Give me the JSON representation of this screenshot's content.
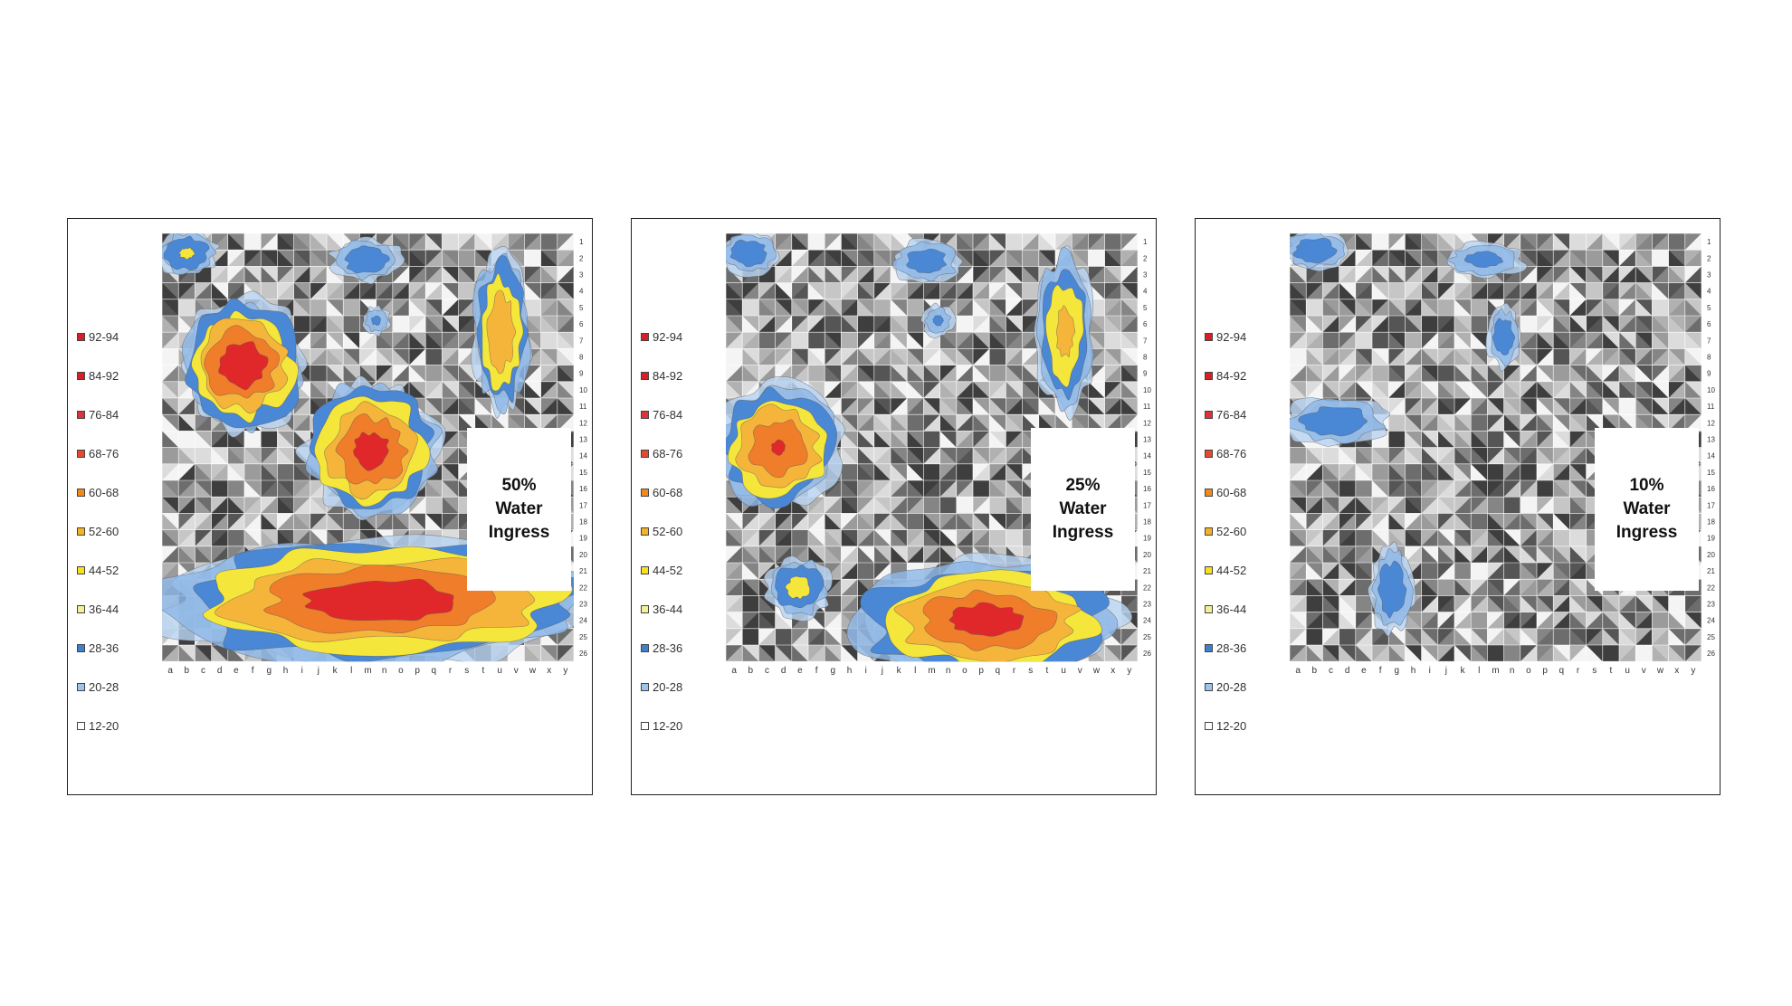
{
  "legend": [
    "92-94",
    "84-92",
    "76-84",
    "68-76",
    "60-68",
    "52-60",
    "44-52",
    "36-44",
    "28-36",
    "20-28",
    "12-20"
  ],
  "colors": {
    "bin_colors": [
      "#d91f26",
      "#d91f26",
      "#e0303a",
      "#e64a2e",
      "#f08a1e",
      "#f5b324",
      "#fadf1e",
      "#f6ef9a",
      "#3f7fd0",
      "#9ec3ec",
      "#ffffff"
    ],
    "contour_fill": [
      "#b9d4f1",
      "#8fb8e8",
      "#4a87d4",
      "#f4e63b",
      "#f5b53a",
      "#ef7d2a",
      "#e0282b"
    ],
    "grid_shades": [
      "#3e3e3e",
      "#555555",
      "#6d6d6d",
      "#858585",
      "#9b9b9b",
      "#b1b1b1",
      "#c6c6c6",
      "#dcdcdc",
      "#f4f4f4"
    ],
    "border": "#222222"
  },
  "chart_data": [
    {
      "type": "heatmap",
      "annotation": [
        "50%",
        "Water",
        "Ingress"
      ],
      "xlabels": [
        "a",
        "b",
        "c",
        "d",
        "e",
        "f",
        "g",
        "h",
        "i",
        "j",
        "k",
        "l",
        "m",
        "n",
        "o",
        "p",
        "q",
        "r",
        "s",
        "t",
        "u",
        "v",
        "w",
        "x",
        "y"
      ],
      "ylabels": [
        "1",
        "2",
        "3",
        "4",
        "5",
        "6",
        "7",
        "8",
        "9",
        "10",
        "11",
        "12",
        "13",
        "14",
        "15",
        "16",
        "17",
        "18",
        "19",
        "20",
        "21",
        "22",
        "23",
        "24",
        "25",
        "26"
      ],
      "hotspots": [
        {
          "x": 1.5,
          "y": 1.2,
          "rx": 1.6,
          "ry": 1.2,
          "peak": 0.42
        },
        {
          "x": 12.4,
          "y": 1.6,
          "rx": 1.9,
          "ry": 1.2,
          "peak": 0.34
        },
        {
          "x": 13.0,
          "y": 5.3,
          "rx": 0.8,
          "ry": 0.8,
          "peak": 0.26
        },
        {
          "x": 20.6,
          "y": 6.0,
          "rx": 1.5,
          "ry": 4.2,
          "peak": 0.68
        },
        {
          "x": 4.9,
          "y": 8.0,
          "rx": 3.3,
          "ry": 3.4,
          "peak": 0.95
        },
        {
          "x": 12.7,
          "y": 13.2,
          "rx": 3.5,
          "ry": 3.5,
          "peak": 0.9
        },
        {
          "x": 13.5,
          "y": 22.3,
          "rx": 12.0,
          "ry": 3.3,
          "peak": 0.93
        }
      ]
    },
    {
      "type": "heatmap",
      "annotation": [
        "25%",
        "Water",
        "Ingress"
      ],
      "xlabels": [
        "a",
        "b",
        "c",
        "d",
        "e",
        "f",
        "g",
        "h",
        "i",
        "j",
        "k",
        "l",
        "m",
        "n",
        "o",
        "p",
        "q",
        "r",
        "s",
        "t",
        "u",
        "v",
        "w",
        "x",
        "y"
      ],
      "ylabels": [
        "1",
        "2",
        "3",
        "4",
        "5",
        "6",
        "7",
        "8",
        "9",
        "10",
        "11",
        "12",
        "13",
        "14",
        "15",
        "16",
        "17",
        "18",
        "19",
        "20",
        "21",
        "22",
        "23",
        "24",
        "25",
        "26"
      ],
      "hotspots": [
        {
          "x": 1.4,
          "y": 1.2,
          "rx": 1.6,
          "ry": 1.2,
          "peak": 0.34
        },
        {
          "x": 12.2,
          "y": 1.7,
          "rx": 2.0,
          "ry": 1.2,
          "peak": 0.32
        },
        {
          "x": 12.9,
          "y": 5.3,
          "rx": 0.9,
          "ry": 0.9,
          "peak": 0.26
        },
        {
          "x": 20.6,
          "y": 6.0,
          "rx": 1.5,
          "ry": 4.2,
          "peak": 0.6
        },
        {
          "x": 3.2,
          "y": 13.0,
          "rx": 3.3,
          "ry": 3.2,
          "peak": 0.85
        },
        {
          "x": 4.4,
          "y": 21.5,
          "rx": 1.7,
          "ry": 1.6,
          "peak": 0.45
        },
        {
          "x": 15.8,
          "y": 23.5,
          "rx": 7.0,
          "ry": 3.0,
          "peak": 0.9
        }
      ]
    },
    {
      "type": "heatmap",
      "annotation": [
        "10%",
        "Water",
        "Ingress"
      ],
      "xlabels": [
        "a",
        "b",
        "c",
        "d",
        "e",
        "f",
        "g",
        "h",
        "i",
        "j",
        "k",
        "l",
        "m",
        "n",
        "o",
        "p",
        "q",
        "r",
        "s",
        "t",
        "u",
        "v",
        "w",
        "x",
        "y"
      ],
      "ylabels": [
        "1",
        "2",
        "3",
        "4",
        "5",
        "6",
        "7",
        "8",
        "9",
        "10",
        "11",
        "12",
        "13",
        "14",
        "15",
        "16",
        "17",
        "18",
        "19",
        "20",
        "21",
        "22",
        "23",
        "24",
        "25",
        "26"
      ],
      "hotspots": [
        {
          "x": 1.5,
          "y": 1.0,
          "rx": 1.8,
          "ry": 1.1,
          "peak": 0.34
        },
        {
          "x": 11.8,
          "y": 1.6,
          "rx": 2.3,
          "ry": 1.0,
          "peak": 0.28
        },
        {
          "x": 13.0,
          "y": 6.3,
          "rx": 0.9,
          "ry": 1.7,
          "peak": 0.34
        },
        {
          "x": 2.8,
          "y": 11.4,
          "rx": 3.0,
          "ry": 1.3,
          "peak": 0.34
        },
        {
          "x": 6.2,
          "y": 21.6,
          "rx": 1.2,
          "ry": 2.4,
          "peak": 0.34
        }
      ]
    }
  ]
}
